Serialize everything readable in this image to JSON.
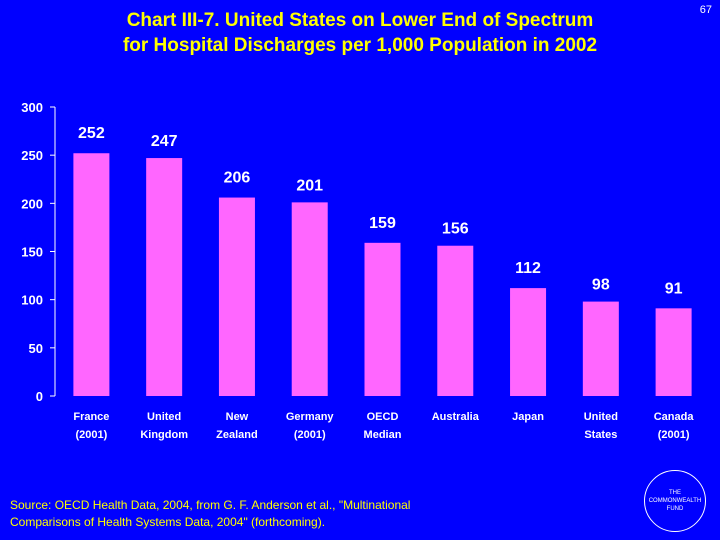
{
  "slide": {
    "number": "67",
    "title_line1": "Chart III-7. United States on Lower End of Spectrum",
    "title_line2": "for Hospital Discharges per 1,000 Population in 2002",
    "source_line1": "Source: OECD Health Data, 2004, from G. F. Anderson et al., \"Multinational",
    "source_line2": "Comparisons of Health Systems Data, 2004\" (forthcoming).",
    "logo_text": "THE\nCOMMONWEALTH\nFUND"
  },
  "colors": {
    "background": "#0000FF",
    "title": "#FFFF00",
    "bar": "#FF66FF",
    "text": "#FFFFFF",
    "axis": "#FFFFFF"
  },
  "chart_data": {
    "type": "bar",
    "title": "United States on Lower End of Spectrum for Hospital Discharges per 1,000 Population in 2002",
    "xlabel": "",
    "ylabel": "",
    "ylim": [
      0,
      300
    ],
    "yticks": [
      0,
      50,
      100,
      150,
      200,
      250,
      300
    ],
    "grid": false,
    "categories": [
      [
        "France",
        "(2001)"
      ],
      [
        "United",
        "Kingdom"
      ],
      [
        "New",
        "Zealand"
      ],
      [
        "Germany",
        "(2001)"
      ],
      [
        "OECD",
        "Median"
      ],
      [
        "Australia",
        ""
      ],
      [
        "Japan",
        ""
      ],
      [
        "United",
        "States"
      ],
      [
        "Canada",
        "(2001)"
      ]
    ],
    "values": [
      252,
      247,
      206,
      201,
      159,
      156,
      112,
      98,
      91
    ]
  }
}
